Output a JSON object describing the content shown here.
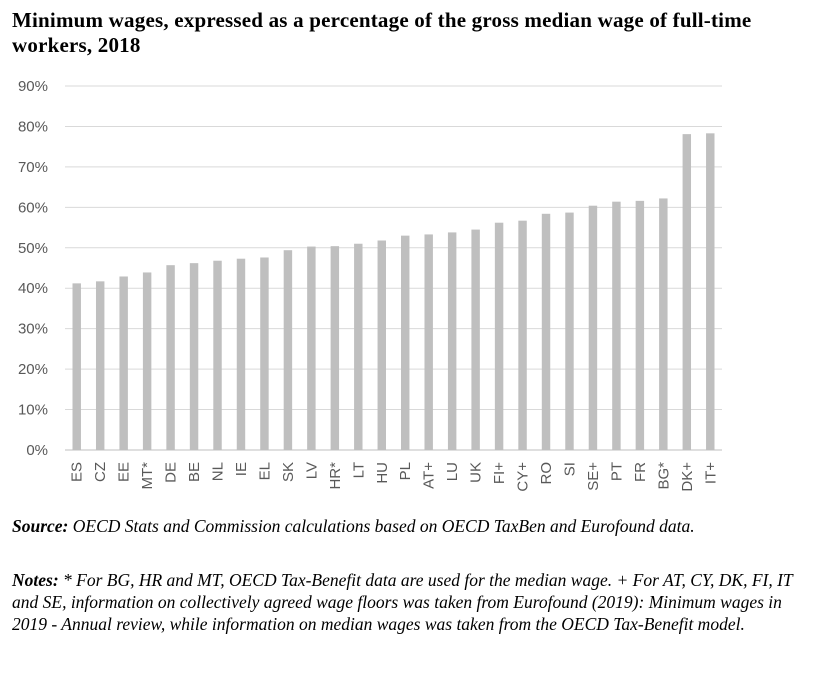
{
  "title": "Minimum wages, expressed as a percentage of the gross median wage of full-time workers, 2018",
  "chart_data": {
    "type": "bar",
    "title": "Minimum wages, expressed as a percentage of the gross median wage of full-time workers, 2018",
    "categories": [
      "ES",
      "CZ",
      "EE",
      "MT*",
      "DE",
      "BE",
      "NL",
      "IE",
      "EL",
      "SK",
      "LV",
      "HR*",
      "LT",
      "HU",
      "PL",
      "AT+",
      "LU",
      "UK",
      "FI+",
      "CY+",
      "RO",
      "SI",
      "SE+",
      "PT",
      "FR",
      "BG*",
      "DK+",
      "IT+"
    ],
    "values": [
      41.2,
      41.7,
      42.9,
      43.9,
      45.7,
      46.2,
      46.8,
      47.3,
      47.6,
      49.4,
      50.3,
      50.4,
      51.0,
      51.8,
      53.0,
      53.3,
      53.8,
      54.5,
      56.2,
      56.7,
      58.4,
      58.7,
      60.4,
      61.4,
      61.6,
      62.2,
      78.1,
      78.3
    ],
    "ylim": [
      0,
      90
    ],
    "yticks": [
      "0%",
      "10%",
      "20%",
      "30%",
      "40%",
      "50%",
      "60%",
      "70%",
      "80%",
      "90%"
    ],
    "ytick_values": [
      0,
      10,
      20,
      30,
      40,
      50,
      60,
      70,
      80,
      90
    ],
    "grid": true,
    "legend": "none",
    "bar_color": "#bfbfbf",
    "grid_color": "#d9d9d9"
  },
  "source": {
    "label": "Source:",
    "text": " OECD Stats and Commission calculations based on OECD TaxBen and Eurofound data."
  },
  "notes": {
    "label": "Notes:",
    "text": " * For BG, HR and MT, OECD Tax-Benefit data are used for the median wage. + For AT, CY, DK, FI, IT and SE, information on collectively agreed wage floors was taken from Eurofound (2019): Minimum wages in 2019 - Annual review, while information on median wages was taken from the OECD Tax-Benefit model."
  }
}
